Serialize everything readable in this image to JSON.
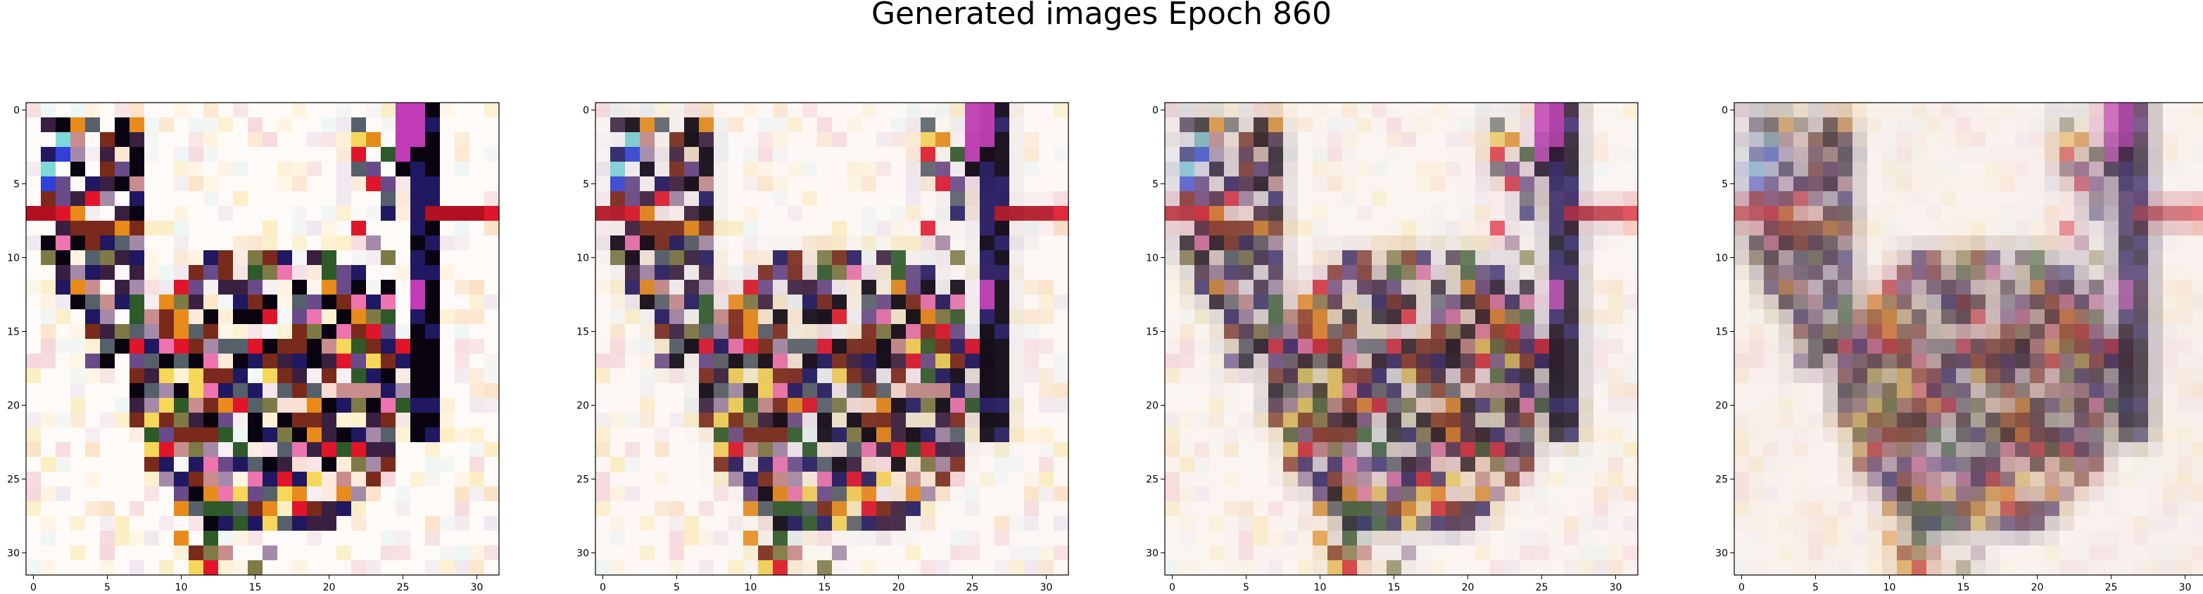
{
  "figure": {
    "title": "Generated images Epoch 860"
  },
  "chart_data": {
    "type": "heatmap",
    "title": "Generated images Epoch 860",
    "description": "Four 32x32 RGB generated images shown side by side",
    "panel_count": 4,
    "grid_size": [
      32,
      32
    ],
    "xlim": [
      -0.5,
      31.5
    ],
    "ylim": [
      31.5,
      -0.5
    ],
    "xticks": [
      0,
      5,
      10,
      15,
      20,
      25,
      30
    ],
    "yticks": [
      0,
      5,
      10,
      15,
      20,
      25,
      30
    ],
    "xtick_labels": [
      "0",
      "5",
      "10",
      "15",
      "20",
      "25",
      "30"
    ],
    "ytick_labels": [
      "0",
      "5",
      "10",
      "15",
      "20",
      "25",
      "30"
    ],
    "panels": [
      {
        "index": 1,
        "blur": 0.0
      },
      {
        "index": 2,
        "blur": 0.12
      },
      {
        "index": 3,
        "blur": 0.35
      },
      {
        "index": 4,
        "blur": 0.6
      }
    ],
    "palette": {
      "background": "#fdf6f2",
      "black": "#0a0410",
      "magenta": "#c03bb5",
      "red": "#e0152a",
      "orange": "#e88b1a",
      "yellow": "#f6d75a",
      "pink": "#ee74b0",
      "purple": "#6a4b8a",
      "blue": "#3040d8",
      "cyan": "#7fd8d8",
      "green": "#2e5a2a",
      "olive": "#7d7a45",
      "gray": "#55606a",
      "navy": "#201860",
      "brown": "#7a2a1a",
      "light_yellow": "#fbeec0",
      "light_pink": "#f6d8dc"
    }
  }
}
